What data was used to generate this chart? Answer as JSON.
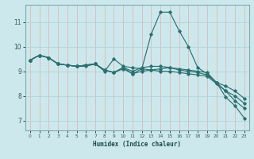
{
  "title": "",
  "xlabel": "Humidex (Indice chaleur)",
  "background_color": "#cde8ec",
  "grid_color_v": "#ddb8b8",
  "grid_color_h": "#aed4d8",
  "line_color": "#2d7070",
  "xlim": [
    -0.5,
    23.5
  ],
  "ylim": [
    6.6,
    11.7
  ],
  "yticks": [
    7,
    8,
    9,
    10,
    11
  ],
  "xticks": [
    0,
    1,
    2,
    3,
    4,
    5,
    6,
    7,
    8,
    9,
    10,
    11,
    12,
    13,
    14,
    15,
    16,
    17,
    18,
    19,
    20,
    21,
    22,
    23
  ],
  "lines": [
    {
      "x": [
        0,
        1,
        2,
        3,
        4,
        5,
        6,
        7,
        8,
        9,
        10,
        11,
        12,
        13,
        14,
        15,
        16,
        17,
        18,
        19,
        20,
        21,
        22,
        23
      ],
      "y": [
        9.45,
        9.65,
        9.55,
        9.3,
        9.25,
        9.2,
        9.25,
        9.3,
        9.05,
        8.95,
        9.15,
        8.9,
        9.1,
        10.5,
        11.4,
        11.4,
        10.65,
        10.0,
        9.15,
        8.9,
        8.55,
        7.95,
        7.6,
        7.1
      ]
    },
    {
      "x": [
        0,
        1,
        2,
        3,
        4,
        5,
        6,
        7,
        8,
        9,
        10,
        11,
        12,
        13,
        14,
        15,
        16,
        17,
        18,
        19,
        20,
        21,
        22,
        23
      ],
      "y": [
        9.45,
        9.65,
        9.55,
        9.3,
        9.25,
        9.2,
        9.25,
        9.3,
        9.05,
        8.95,
        9.15,
        9.0,
        9.15,
        9.2,
        9.2,
        9.15,
        9.1,
        9.05,
        9.0,
        8.95,
        8.55,
        8.4,
        8.2,
        7.9
      ]
    },
    {
      "x": [
        0,
        1,
        2,
        3,
        4,
        5,
        6,
        7,
        8,
        9,
        10,
        11,
        12,
        13,
        14,
        15,
        16,
        17,
        18,
        19,
        20,
        21,
        22,
        23
      ],
      "y": [
        9.45,
        9.65,
        9.55,
        9.3,
        9.25,
        9.2,
        9.25,
        9.3,
        9.05,
        8.95,
        9.1,
        8.9,
        9.0,
        9.05,
        9.1,
        9.15,
        9.05,
        9.0,
        8.95,
        8.85,
        8.55,
        8.2,
        8.0,
        7.7
      ]
    },
    {
      "x": [
        0,
        1,
        2,
        3,
        4,
        5,
        6,
        7,
        8,
        9,
        10,
        11,
        12,
        13,
        14,
        15,
        16,
        17,
        18,
        19,
        20,
        21,
        22,
        23
      ],
      "y": [
        9.45,
        9.65,
        9.55,
        9.3,
        9.25,
        9.2,
        9.2,
        9.3,
        9.0,
        9.5,
        9.2,
        9.15,
        9.1,
        9.05,
        9.0,
        9.0,
        8.95,
        8.9,
        8.85,
        8.8,
        8.5,
        8.2,
        7.8,
        7.5
      ]
    }
  ]
}
